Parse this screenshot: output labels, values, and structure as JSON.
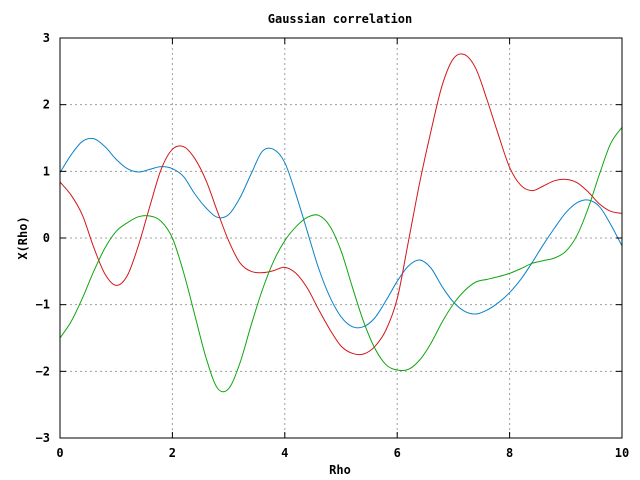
{
  "chart_data": {
    "type": "line",
    "title": "Gaussian correlation",
    "xlabel": "Rho",
    "ylabel": "X(Rho)",
    "xlim": [
      0,
      10
    ],
    "ylim": [
      -3,
      3
    ],
    "grid": true,
    "legend": "none",
    "x_ticks": [
      0,
      2,
      4,
      6,
      8,
      10
    ],
    "y_ticks": [
      -3,
      -2,
      -1,
      0,
      1,
      2,
      3
    ],
    "series": [
      {
        "color": "#0b82c9",
        "points": [
          [
            0,
            0.98
          ],
          [
            0.2,
            1.25
          ],
          [
            0.4,
            1.45
          ],
          [
            0.6,
            1.49
          ],
          [
            0.8,
            1.37
          ],
          [
            1.0,
            1.18
          ],
          [
            1.2,
            1.04
          ],
          [
            1.4,
            0.99
          ],
          [
            1.6,
            1.03
          ],
          [
            1.8,
            1.07
          ],
          [
            2.0,
            1.04
          ],
          [
            2.2,
            0.92
          ],
          [
            2.4,
            0.66
          ],
          [
            2.6,
            0.45
          ],
          [
            2.8,
            0.31
          ],
          [
            3.0,
            0.35
          ],
          [
            3.2,
            0.6
          ],
          [
            3.4,
            0.96
          ],
          [
            3.6,
            1.3
          ],
          [
            3.8,
            1.33
          ],
          [
            4.0,
            1.13
          ],
          [
            4.2,
            0.65
          ],
          [
            4.4,
            0.1
          ],
          [
            4.6,
            -0.45
          ],
          [
            4.8,
            -0.88
          ],
          [
            5.0,
            -1.18
          ],
          [
            5.2,
            -1.33
          ],
          [
            5.4,
            -1.33
          ],
          [
            5.6,
            -1.2
          ],
          [
            5.8,
            -0.94
          ],
          [
            6.0,
            -0.65
          ],
          [
            6.2,
            -0.42
          ],
          [
            6.4,
            -0.33
          ],
          [
            6.6,
            -0.45
          ],
          [
            6.8,
            -0.73
          ],
          [
            7.0,
            -0.96
          ],
          [
            7.2,
            -1.1
          ],
          [
            7.4,
            -1.14
          ],
          [
            7.6,
            -1.08
          ],
          [
            7.8,
            -0.97
          ],
          [
            8.0,
            -0.82
          ],
          [
            8.2,
            -0.62
          ],
          [
            8.4,
            -0.37
          ],
          [
            8.6,
            -0.1
          ],
          [
            8.8,
            0.15
          ],
          [
            9.0,
            0.38
          ],
          [
            9.2,
            0.53
          ],
          [
            9.4,
            0.57
          ],
          [
            9.6,
            0.47
          ],
          [
            9.8,
            0.2
          ],
          [
            10.0,
            -0.12
          ]
        ]
      },
      {
        "color": "#d41616",
        "points": [
          [
            0,
            0.84
          ],
          [
            0.2,
            0.64
          ],
          [
            0.4,
            0.34
          ],
          [
            0.6,
            -0.14
          ],
          [
            0.8,
            -0.54
          ],
          [
            1.0,
            -0.71
          ],
          [
            1.2,
            -0.56
          ],
          [
            1.4,
            -0.1
          ],
          [
            1.6,
            0.48
          ],
          [
            1.8,
            1.03
          ],
          [
            2.0,
            1.33
          ],
          [
            2.2,
            1.37
          ],
          [
            2.4,
            1.19
          ],
          [
            2.6,
            0.86
          ],
          [
            2.8,
            0.4
          ],
          [
            3.0,
            -0.04
          ],
          [
            3.2,
            -0.37
          ],
          [
            3.4,
            -0.5
          ],
          [
            3.6,
            -0.52
          ],
          [
            3.8,
            -0.49
          ],
          [
            4.0,
            -0.44
          ],
          [
            4.2,
            -0.53
          ],
          [
            4.4,
            -0.75
          ],
          [
            4.6,
            -1.07
          ],
          [
            4.8,
            -1.37
          ],
          [
            5.0,
            -1.62
          ],
          [
            5.2,
            -1.73
          ],
          [
            5.4,
            -1.74
          ],
          [
            5.6,
            -1.63
          ],
          [
            5.8,
            -1.38
          ],
          [
            6.0,
            -0.91
          ],
          [
            6.2,
            -0.05
          ],
          [
            6.4,
            0.83
          ],
          [
            6.6,
            1.6
          ],
          [
            6.8,
            2.29
          ],
          [
            7.0,
            2.69
          ],
          [
            7.2,
            2.75
          ],
          [
            7.4,
            2.54
          ],
          [
            7.6,
            2.07
          ],
          [
            7.8,
            1.55
          ],
          [
            8.0,
            1.06
          ],
          [
            8.2,
            0.79
          ],
          [
            8.4,
            0.71
          ],
          [
            8.6,
            0.78
          ],
          [
            8.8,
            0.86
          ],
          [
            9.0,
            0.88
          ],
          [
            9.2,
            0.83
          ],
          [
            9.4,
            0.69
          ],
          [
            9.6,
            0.51
          ],
          [
            9.8,
            0.4
          ],
          [
            10.0,
            0.37
          ]
        ]
      },
      {
        "color": "#10a510",
        "points": [
          [
            0,
            -1.5
          ],
          [
            0.2,
            -1.25
          ],
          [
            0.4,
            -0.9
          ],
          [
            0.6,
            -0.5
          ],
          [
            0.8,
            -0.15
          ],
          [
            1.0,
            0.1
          ],
          [
            1.2,
            0.23
          ],
          [
            1.4,
            0.32
          ],
          [
            1.6,
            0.33
          ],
          [
            1.8,
            0.25
          ],
          [
            2.0,
            0.0
          ],
          [
            2.2,
            -0.52
          ],
          [
            2.4,
            -1.16
          ],
          [
            2.6,
            -1.8
          ],
          [
            2.8,
            -2.25
          ],
          [
            3.0,
            -2.26
          ],
          [
            3.2,
            -1.88
          ],
          [
            3.4,
            -1.31
          ],
          [
            3.6,
            -0.78
          ],
          [
            3.8,
            -0.35
          ],
          [
            4.0,
            -0.04
          ],
          [
            4.2,
            0.17
          ],
          [
            4.4,
            0.31
          ],
          [
            4.6,
            0.34
          ],
          [
            4.8,
            0.18
          ],
          [
            5.0,
            -0.19
          ],
          [
            5.2,
            -0.73
          ],
          [
            5.4,
            -1.25
          ],
          [
            5.6,
            -1.65
          ],
          [
            5.8,
            -1.9
          ],
          [
            6.0,
            -1.98
          ],
          [
            6.2,
            -1.97
          ],
          [
            6.4,
            -1.83
          ],
          [
            6.6,
            -1.58
          ],
          [
            6.8,
            -1.26
          ],
          [
            7.0,
            -0.99
          ],
          [
            7.2,
            -0.79
          ],
          [
            7.4,
            -0.66
          ],
          [
            7.6,
            -0.62
          ],
          [
            7.8,
            -0.58
          ],
          [
            8.0,
            -0.53
          ],
          [
            8.2,
            -0.46
          ],
          [
            8.4,
            -0.38
          ],
          [
            8.6,
            -0.34
          ],
          [
            8.8,
            -0.3
          ],
          [
            9.0,
            -0.2
          ],
          [
            9.2,
            0.04
          ],
          [
            9.4,
            0.45
          ],
          [
            9.6,
            0.96
          ],
          [
            9.8,
            1.42
          ],
          [
            10.0,
            1.66
          ]
        ]
      }
    ]
  }
}
